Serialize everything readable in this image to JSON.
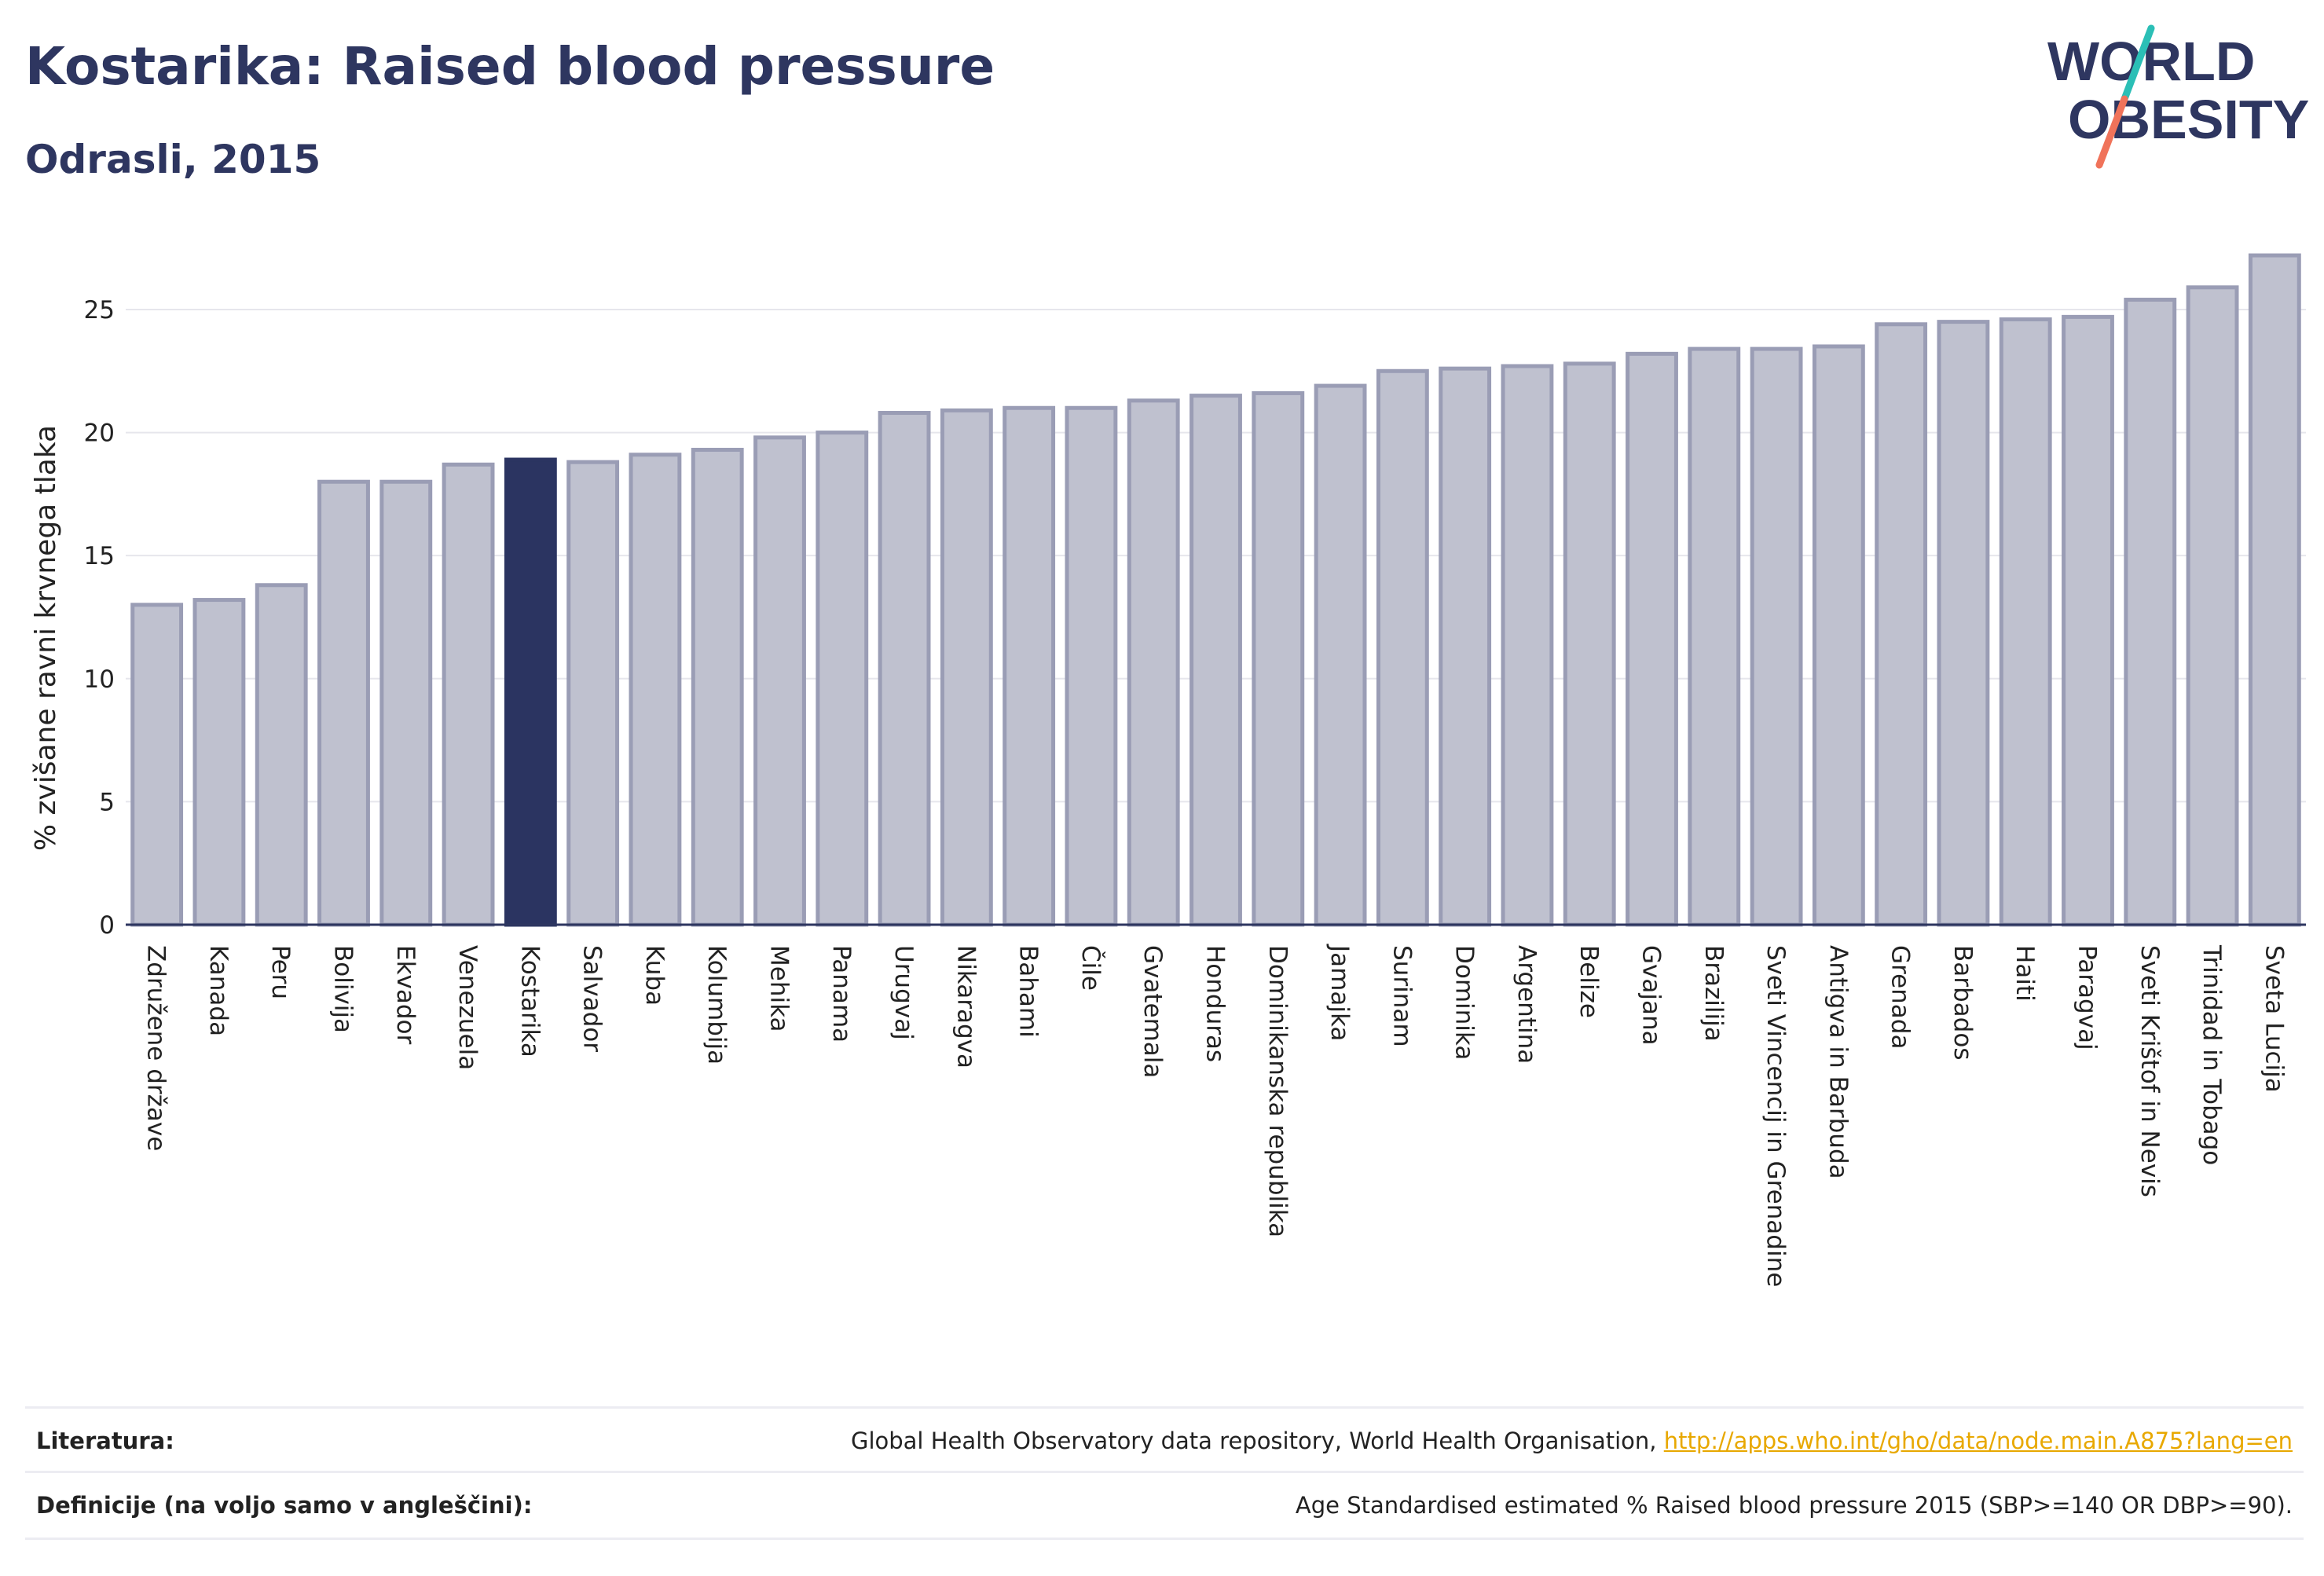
{
  "header": {
    "title": "Kostarika: Raised blood pressure",
    "subtitle": "Odrasli, 2015"
  },
  "logo": {
    "line1": "WORLD",
    "line2": "OBESITY",
    "colors": {
      "text": "#2e3660",
      "slash_top": "#2bbfb6",
      "slash_bottom": "#f0735a"
    }
  },
  "colors": {
    "bar_default": "#bfc1cf",
    "bar_border": "#9a9db5",
    "bar_highlight": "#2b3461",
    "grid": "#e6e6ec",
    "axis": "#2e3660"
  },
  "chart_data": {
    "type": "bar",
    "ylabel": "% zvišane ravni krvnega tlaka",
    "ylim": [
      0,
      28
    ],
    "yticks": [
      0,
      5,
      10,
      15,
      20,
      25
    ],
    "highlight": "Kostarika",
    "grid": true,
    "categories": [
      "Združene države",
      "Kanada",
      "Peru",
      "Bolivija",
      "Ekvador",
      "Venezuela",
      "Kostarika",
      "Salvador",
      "Kuba",
      "Kolumbija",
      "Mehika",
      "Panama",
      "Urugvaj",
      "Nikaragva",
      "Bahami",
      "Čile",
      "Gvatemala",
      "Honduras",
      "Dominikanska republika",
      "Jamajka",
      "Surinam",
      "Dominika",
      "Argentina",
      "Belize",
      "Gvajana",
      "Brazilija",
      "Sveti Vincencij in Grenadine",
      "Antigva in Barbuda",
      "Grenada",
      "Barbados",
      "Haiti",
      "Paragvaj",
      "Sveti Krištof in Nevis",
      "Trinidad in Tobago",
      "Sveta Lucija"
    ],
    "values": [
      13.0,
      13.2,
      13.8,
      18.0,
      18.0,
      18.7,
      18.9,
      18.8,
      19.1,
      19.3,
      19.8,
      20.0,
      20.8,
      20.9,
      21.0,
      21.0,
      21.3,
      21.5,
      21.6,
      21.9,
      22.5,
      22.6,
      22.7,
      22.8,
      23.2,
      23.4,
      23.4,
      23.5,
      24.4,
      24.5,
      24.6,
      24.7,
      25.4,
      25.9,
      27.2
    ]
  },
  "footer": {
    "sources_label": "Literatura:",
    "sources_text": "Global Health Observatory data repository, World Health Organisation, ",
    "sources_link": "http://apps.who.int/gho/data/node.main.A875?lang=en",
    "definitions_label": "Definicije (na voljo samo v angleščini):",
    "definitions_text": "Age Standardised estimated % Raised blood pressure 2015 (SBP>=140 OR DBP>=90)."
  }
}
